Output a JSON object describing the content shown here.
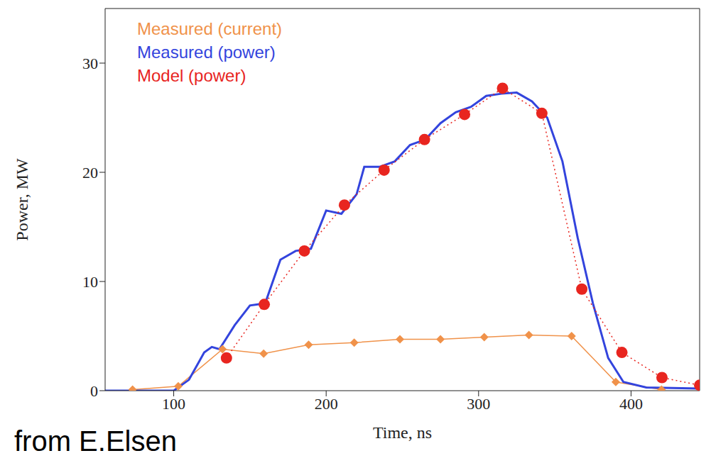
{
  "chart_data": {
    "type": "line",
    "xlabel": "Time, ns",
    "ylabel": "Power, MW",
    "annotation": "from E.Elsen",
    "xlim": [
      55,
      445
    ],
    "xticks": [
      100,
      200,
      300,
      400
    ],
    "ylim": [
      0,
      35
    ],
    "yticks": [
      0,
      10,
      20,
      30
    ],
    "grid": false,
    "legend": "upper left",
    "series": [
      {
        "name": "Measured (current)",
        "color": "#f0924a",
        "marker": "diamond",
        "line_style": "solid",
        "x": [
          73,
          103,
          132,
          159,
          188.5,
          218.4,
          248.4,
          275,
          303.7,
          333,
          361,
          390,
          420
        ],
        "values": [
          0.1,
          0.4,
          3.8,
          3.4,
          4.2,
          4.4,
          4.7,
          4.7,
          4.9,
          5.1,
          5.0,
          0.8,
          0.1
        ]
      },
      {
        "name": "Measured (power)",
        "color": "#3344dd",
        "marker": "none",
        "line_style": "solid",
        "x": [
          55,
          100,
          110,
          120,
          125,
          130,
          140,
          150,
          160,
          170,
          180,
          190,
          200,
          210,
          220,
          225,
          235,
          245,
          255,
          265,
          275,
          285,
          295,
          305,
          315,
          325,
          335,
          345,
          355,
          365,
          375,
          385,
          395,
          410,
          445
        ],
        "values": [
          0,
          0,
          1,
          3.5,
          4,
          3.8,
          6,
          7.8,
          8,
          12,
          12.8,
          13,
          16.5,
          16.2,
          18,
          20.5,
          20.5,
          21,
          22.5,
          23,
          24.5,
          25.5,
          26,
          27,
          27.2,
          27.3,
          26.5,
          25,
          21,
          14,
          8,
          3,
          0.8,
          0.3,
          0.2
        ]
      },
      {
        "name": "Model (power)",
        "color": "#e8251f",
        "marker": "circle",
        "line_style": "dotted",
        "x": [
          134.6,
          159.4,
          185.7,
          212,
          238,
          264.5,
          290.8,
          315.7,
          341.5,
          367.7,
          394,
          420.3,
          445
        ],
        "values": [
          3.0,
          7.9,
          12.8,
          17.0,
          20.2,
          23.0,
          25.3,
          27.7,
          25.4,
          9.3,
          3.5,
          1.2,
          0.5
        ]
      }
    ]
  }
}
